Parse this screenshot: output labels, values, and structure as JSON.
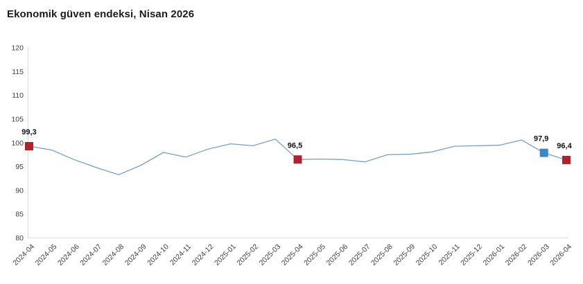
{
  "title": "Ekonomik güven endeksi, Nisan 2026",
  "chart_data": {
    "type": "line",
    "title": "Ekonomik güven endeksi, Nisan 2026",
    "categories": [
      "2024-04",
      "2024-05",
      "2024-06",
      "2024-07",
      "2024-08",
      "2024-09",
      "2024-10",
      "2024-11",
      "2024-12",
      "2025-01",
      "2025-02",
      "2025-03",
      "2025-04",
      "2025-05",
      "2025-06",
      "2025-07",
      "2025-08",
      "2025-09",
      "2025-10",
      "2025-11",
      "2025-12",
      "2026-01",
      "2026-02",
      "2026-03",
      "2026-04"
    ],
    "values": [
      99.3,
      98.5,
      96.5,
      94.8,
      93.3,
      95.3,
      98.0,
      97.0,
      98.7,
      99.8,
      99.4,
      100.8,
      96.5,
      96.6,
      96.5,
      96.0,
      97.5,
      97.6,
      98.1,
      99.3,
      99.4,
      99.5,
      100.6,
      97.9,
      96.4
    ],
    "ylim": [
      80,
      120
    ],
    "ytick_step": 5,
    "grid": false,
    "legend": "none",
    "xlabel": "",
    "ylabel": "",
    "line_color": "#76a0c0",
    "axis_color": "#d9d9d9",
    "tick_label_color": "#3d3d3d",
    "annotation_label_color": "#111111",
    "annotations": [
      {
        "category": "2024-04",
        "value": 99.3,
        "label": "99,3",
        "marker_color": "#b2222a",
        "label_dx": 0
      },
      {
        "category": "2025-04",
        "value": 96.5,
        "label": "96,5",
        "marker_color": "#b2222a",
        "label_dx": -4
      },
      {
        "category": "2026-03",
        "value": 97.9,
        "label": "97,9",
        "marker_color": "#3e87c6",
        "label_dx": -4
      },
      {
        "category": "2026-04",
        "value": 96.4,
        "label": "96,4",
        "marker_color": "#b2222a",
        "label_dx": -3
      }
    ]
  }
}
